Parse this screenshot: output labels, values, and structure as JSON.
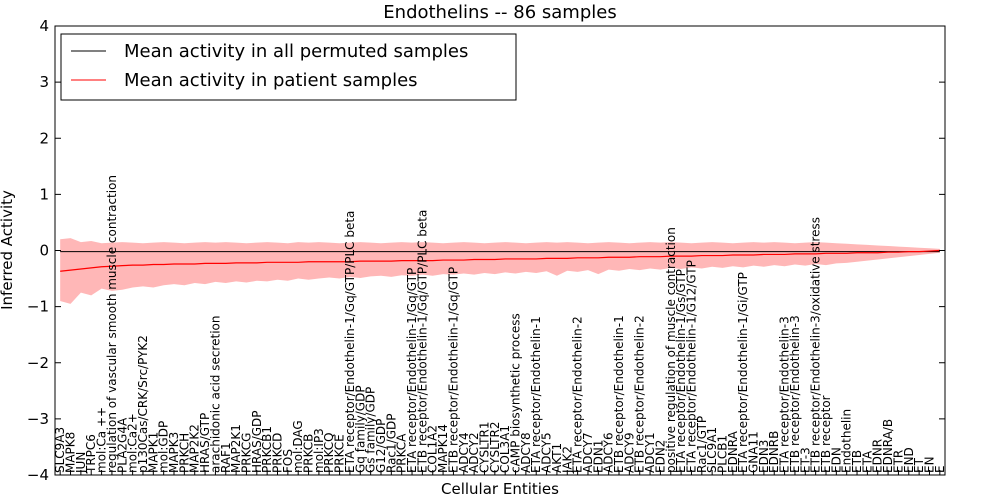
{
  "chart_data": {
    "type": "line",
    "title": "Endothelins -- 86 samples",
    "xlabel": "Cellular Entities",
    "ylabel": "Inferred Activity",
    "ylim": [
      -4,
      4
    ],
    "yticks": [
      -4,
      -3,
      -2,
      -1,
      0,
      1,
      2,
      3,
      4
    ],
    "grid": false,
    "legend_position": "top-left",
    "colors": {
      "permuted": "#000000",
      "patient": "#ff0000",
      "band": "#ff9999"
    },
    "categories": [
      "SLC9A3",
      "MAPK8",
      "JUN",
      "TRPC6",
      "mol:Ca ++",
      "regulation of vascular smooth muscle contraction",
      "PLA2G4A",
      "mol:Ca2+",
      "p130Cas/CRK/Src/PYK2",
      "MAPK1",
      "mol:GDP",
      "MAPK3",
      "PRKCH",
      "MAP2K2",
      "HRAS/GTP",
      "arachidonic acid secretion",
      "RAF1",
      "MAP2K1",
      "PRKCG",
      "HRAS/GDP",
      "PRKCB1",
      "PRKCD",
      "FOS",
      "mol:DAG",
      "PRKCB",
      "mol:IP3",
      "PRKCQ",
      "PRKCE",
      "ETA receptor/Endothelin-1/Gq/GTP/PLC beta",
      "Gq family/GDP",
      "Gs family/GDP",
      "G12/GDP",
      "Rac1/GDP",
      "PRKCA",
      "ETA receptor/Endothelin-1/Gq/GTP",
      "ETB receptor/Endothelin-1/Gq/GTP/PLC beta",
      "COL1A2",
      "MAPK14",
      "ETB receptor/Endothelin-1/Gq/GTP",
      "ADCY4",
      "ADCY2",
      "CYSLTR1",
      "CYSLTR2",
      "COL3A1",
      "cAMP biosynthetic process",
      "ADCY8",
      "ETA receptor/Endothelin-1",
      "ADCY5",
      "AKT1",
      "JAK2",
      "ETA receptor/Endothelin-2",
      "ADCY7",
      "EDN1",
      "ADCY6",
      "ETB receptor/Endothelin-1",
      "ADCY9",
      "ETB receptor/Endothelin-2",
      "ADCY1",
      "EDN2",
      "positive regulation of muscle contraction",
      "ETA receptor/Endothelin-1/Gs/GTP",
      "ETA receptor/Endothelin-1/G12/GTP",
      "Rac1/GTP",
      "SLC9A1",
      "PLCB1",
      "EDNRA",
      "ETA receptor/Endothelin-1/Gi/GTP",
      "GNA11",
      "EDN3",
      "EDNRB",
      "ETA receptor/Endothelin-3",
      "ETB receptor/Endothelin-3",
      "ET-3",
      "ETB receptor/Endothelin-3/oxidative stress",
      "ETB receptor",
      "EDN",
      "Endothelin",
      "ETB",
      "ETA",
      "EDNR",
      "EDNRA/B",
      "ETR",
      "END",
      "ET",
      "EN",
      "E"
    ],
    "series": [
      {
        "name": "Mean activity in all permuted samples",
        "mean": [
          -0.02,
          -0.02,
          -0.02,
          -0.02,
          -0.02,
          -0.02,
          -0.02,
          -0.02,
          -0.02,
          -0.02,
          -0.02,
          -0.02,
          -0.02,
          -0.02,
          -0.02,
          -0.02,
          -0.02,
          -0.02,
          -0.02,
          -0.02,
          -0.02,
          -0.02,
          -0.02,
          -0.02,
          -0.02,
          -0.02,
          -0.02,
          -0.02,
          -0.02,
          -0.02,
          -0.02,
          -0.02,
          -0.02,
          -0.02,
          -0.02,
          -0.02,
          -0.02,
          -0.02,
          -0.02,
          -0.02,
          -0.02,
          -0.02,
          -0.02,
          -0.02,
          -0.02,
          -0.02,
          -0.02,
          -0.02,
          -0.02,
          -0.02,
          -0.02,
          -0.02,
          -0.02,
          -0.02,
          -0.02,
          -0.02,
          -0.02,
          -0.02,
          -0.02,
          -0.02,
          -0.02,
          -0.02,
          -0.02,
          -0.02,
          -0.02,
          -0.02,
          -0.02,
          -0.02,
          -0.02,
          -0.02,
          -0.02,
          -0.02,
          -0.02,
          -0.02,
          -0.02,
          -0.02,
          -0.02,
          -0.02,
          -0.02,
          -0.02,
          -0.02,
          -0.02,
          -0.02,
          -0.02,
          -0.02,
          -0.02
        ]
      },
      {
        "name": "Mean activity in patient samples",
        "mean": [
          -0.37,
          -0.35,
          -0.33,
          -0.31,
          -0.29,
          -0.28,
          -0.27,
          -0.26,
          -0.26,
          -0.25,
          -0.25,
          -0.24,
          -0.24,
          -0.24,
          -0.23,
          -0.23,
          -0.23,
          -0.22,
          -0.22,
          -0.22,
          -0.21,
          -0.21,
          -0.21,
          -0.21,
          -0.2,
          -0.2,
          -0.2,
          -0.2,
          -0.2,
          -0.19,
          -0.19,
          -0.19,
          -0.19,
          -0.18,
          -0.18,
          -0.18,
          -0.18,
          -0.17,
          -0.17,
          -0.17,
          -0.16,
          -0.16,
          -0.16,
          -0.15,
          -0.15,
          -0.15,
          -0.15,
          -0.14,
          -0.14,
          -0.14,
          -0.13,
          -0.13,
          -0.13,
          -0.12,
          -0.12,
          -0.12,
          -0.11,
          -0.11,
          -0.11,
          -0.1,
          -0.1,
          -0.1,
          -0.09,
          -0.09,
          -0.09,
          -0.08,
          -0.08,
          -0.08,
          -0.07,
          -0.07,
          -0.07,
          -0.06,
          -0.06,
          -0.06,
          -0.05,
          -0.05,
          -0.05,
          -0.04,
          -0.04,
          -0.04,
          -0.03,
          -0.03,
          -0.02,
          -0.02,
          -0.01,
          0.0
        ],
        "upper": [
          0.2,
          0.22,
          0.15,
          0.17,
          0.13,
          0.14,
          0.15,
          0.14,
          0.13,
          0.14,
          0.15,
          0.14,
          0.13,
          0.14,
          0.15,
          0.14,
          0.15,
          0.14,
          0.13,
          0.14,
          0.15,
          0.14,
          0.13,
          0.15,
          0.14,
          0.15,
          0.14,
          0.13,
          0.14,
          0.15,
          0.14,
          0.13,
          0.14,
          0.15,
          0.14,
          0.15,
          0.14,
          0.13,
          0.14,
          0.15,
          0.14,
          0.13,
          0.14,
          0.15,
          0.14,
          0.13,
          0.14,
          0.15,
          0.14,
          0.15,
          0.14,
          0.13,
          0.14,
          0.15,
          0.14,
          0.13,
          0.14,
          0.15,
          0.14,
          0.15,
          0.14,
          0.13,
          0.14,
          0.15,
          0.14,
          0.13,
          0.14,
          0.15,
          0.14,
          0.15,
          0.14,
          0.13,
          0.14,
          0.15,
          0.14,
          0.13,
          0.12,
          0.11,
          0.1,
          0.09,
          0.08,
          0.07,
          0.06,
          0.05,
          0.04,
          0.03
        ],
        "lower": [
          -0.9,
          -0.95,
          -0.75,
          -0.8,
          -0.68,
          -0.72,
          -0.7,
          -0.66,
          -0.64,
          -0.66,
          -0.62,
          -0.6,
          -0.62,
          -0.58,
          -0.6,
          -0.56,
          -0.58,
          -0.55,
          -0.57,
          -0.54,
          -0.55,
          -0.52,
          -0.54,
          -0.5,
          -0.52,
          -0.5,
          -0.48,
          -0.5,
          -0.47,
          -0.49,
          -0.46,
          -0.45,
          -0.47,
          -0.44,
          -0.45,
          -0.43,
          -0.45,
          -0.42,
          -0.43,
          -0.41,
          -0.43,
          -0.4,
          -0.42,
          -0.39,
          -0.41,
          -0.38,
          -0.4,
          -0.37,
          -0.45,
          -0.36,
          -0.38,
          -0.35,
          -0.42,
          -0.34,
          -0.36,
          -0.33,
          -0.35,
          -0.32,
          -0.34,
          -0.31,
          -0.33,
          -0.3,
          -0.32,
          -0.29,
          -0.31,
          -0.28,
          -0.3,
          -0.27,
          -0.29,
          -0.26,
          -0.28,
          -0.25,
          -0.27,
          -0.24,
          -0.26,
          -0.23,
          -0.22,
          -0.2,
          -0.18,
          -0.16,
          -0.14,
          -0.12,
          -0.1,
          -0.08,
          -0.06,
          -0.04
        ]
      }
    ]
  }
}
